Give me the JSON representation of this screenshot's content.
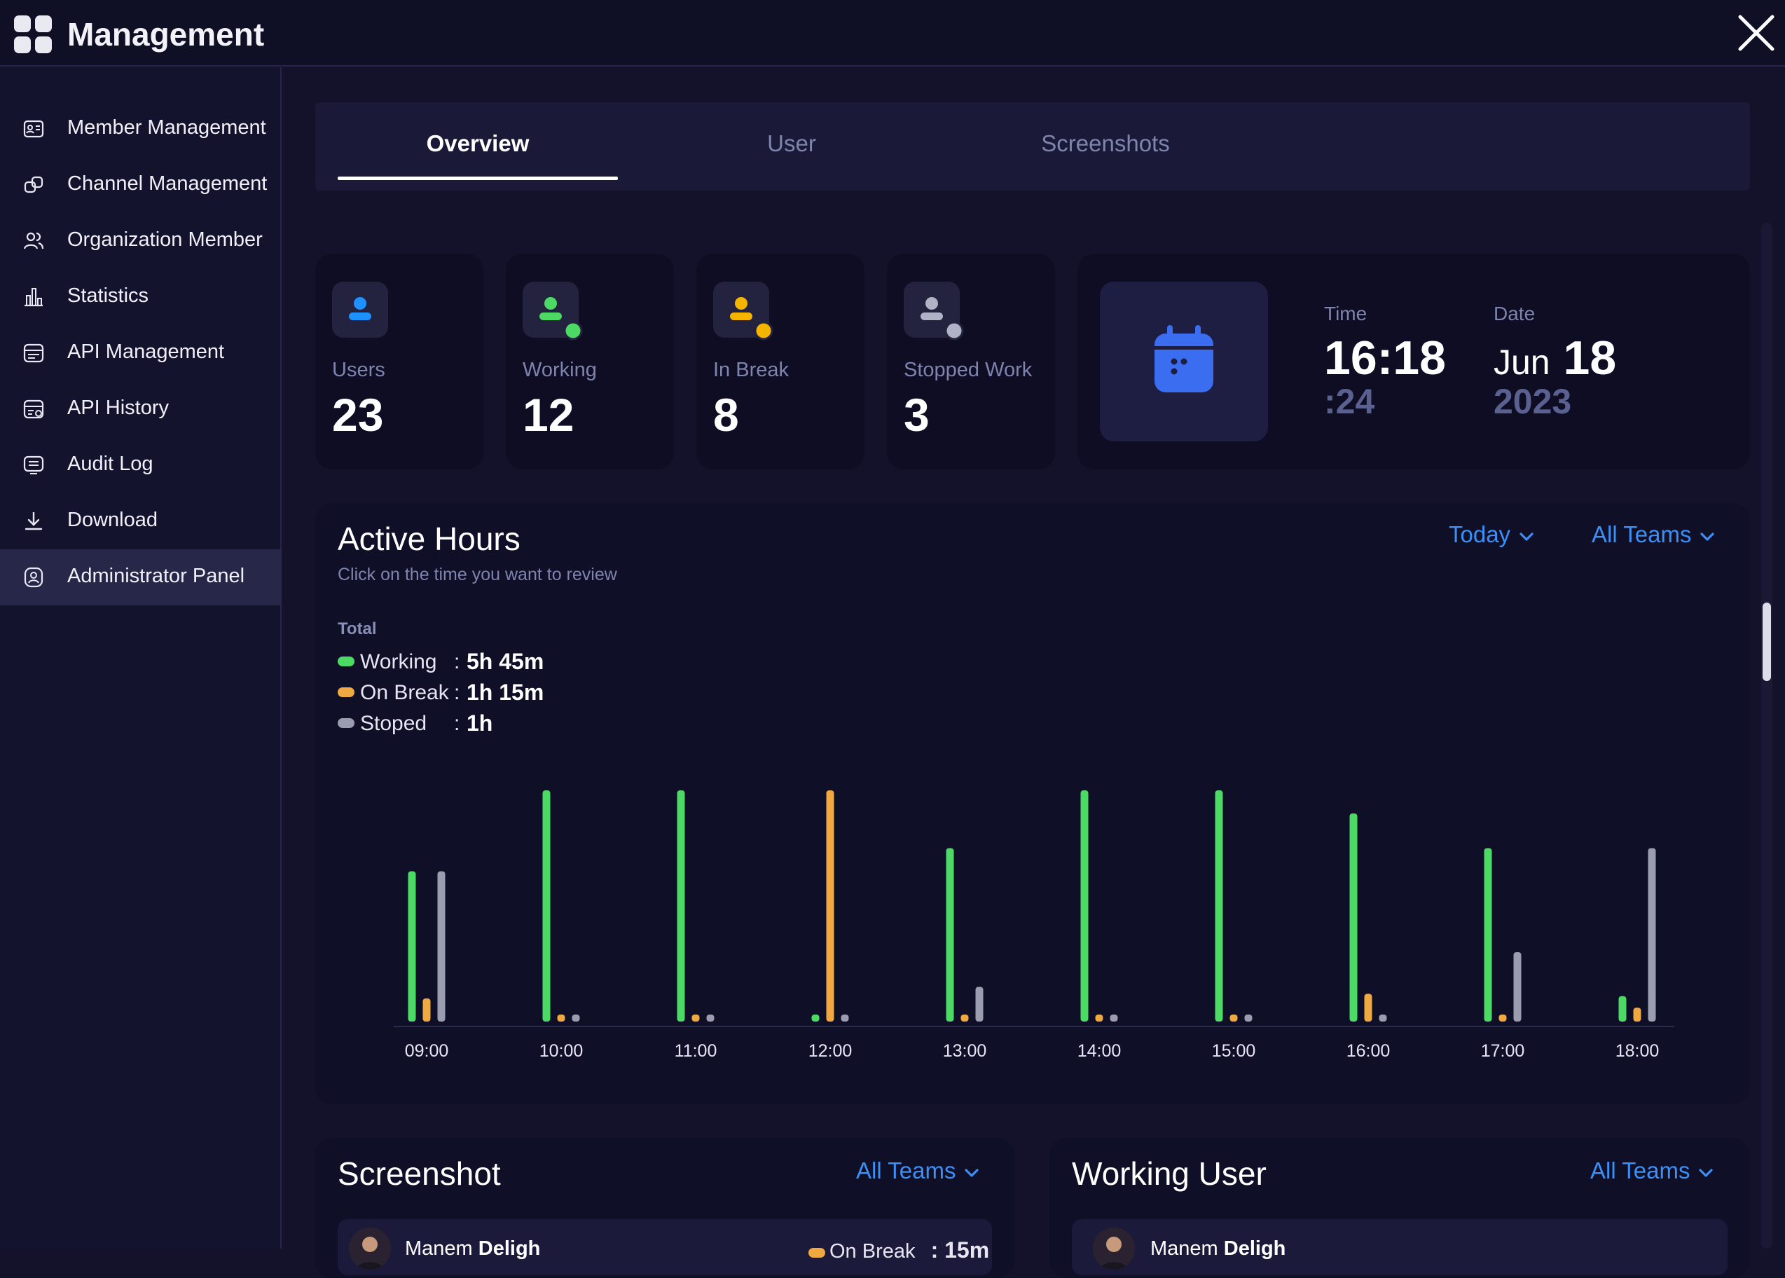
{
  "app": {
    "title": "Management"
  },
  "sidebar": {
    "items": [
      {
        "label": "Member Management",
        "icon": "id-card-icon"
      },
      {
        "label": "Channel Management",
        "icon": "link-icon"
      },
      {
        "label": "Organization Member",
        "icon": "users-icon"
      },
      {
        "label": "Statistics",
        "icon": "bar-chart-icon"
      },
      {
        "label": "API Management",
        "icon": "api-icon"
      },
      {
        "label": "API History",
        "icon": "api-history-icon"
      },
      {
        "label": "Audit Log",
        "icon": "log-icon"
      },
      {
        "label": "Download",
        "icon": "download-icon"
      },
      {
        "label": "Administrator Panel",
        "icon": "admin-icon",
        "active": true
      }
    ]
  },
  "tabs": [
    {
      "label": "Overview",
      "active": true
    },
    {
      "label": "User"
    },
    {
      "label": "Screenshots"
    }
  ],
  "stats": [
    {
      "label": "Users",
      "value": "23",
      "icon_color": "#1e90ff",
      "status_dot": null
    },
    {
      "label": "Working",
      "value": "12",
      "icon_color": "#4cd964",
      "status_dot": "#4cd964"
    },
    {
      "label": "In Break",
      "value": "8",
      "icon_color": "#f5b400",
      "status_dot": "#f5b400"
    },
    {
      "label": "Stopped Work",
      "value": "3",
      "icon_color": "#b0b3c6",
      "status_dot": "#b0b3c6"
    }
  ],
  "clock": {
    "time_label": "Time",
    "time": "16:18",
    "seconds": ":24",
    "date_label": "Date",
    "month": "Jun",
    "day": "18",
    "year": "2023"
  },
  "active_hours": {
    "title": "Active Hours",
    "subtitle": "Click on the time you want to review",
    "period_filter": "Today",
    "team_filter": "All Teams",
    "total_label": "Total",
    "totals": [
      {
        "name": "Working",
        "value": "5h 45m",
        "color": "#4cd964"
      },
      {
        "name": "On Break",
        "value": "1h 15m",
        "color": "#f0a940"
      },
      {
        "name": "Stoped",
        "value": "1h",
        "color": "#9a9db0"
      }
    ]
  },
  "chart_data": {
    "type": "bar",
    "categories": [
      "09:00",
      "10:00",
      "11:00",
      "12:00",
      "13:00",
      "14:00",
      "15:00",
      "16:00",
      "17:00",
      "18:00"
    ],
    "series": [
      {
        "key": "working",
        "color": "#4cd964",
        "values": [
          0.65,
          1.0,
          1.0,
          0.03,
          0.75,
          1.0,
          1.0,
          0.9,
          0.75,
          0.11
        ]
      },
      {
        "key": "break",
        "color": "#f0a940",
        "values": [
          0.1,
          0.03,
          0.03,
          1.0,
          0.03,
          0.03,
          0.03,
          0.12,
          0.03,
          0.06
        ]
      },
      {
        "key": "stopped",
        "color": "#9a9db0",
        "values": [
          0.65,
          0.03,
          0.03,
          0.03,
          0.15,
          0.03,
          0.03,
          0.03,
          0.3,
          0.75
        ]
      }
    ],
    "ylim": [
      0,
      1
    ]
  },
  "screenshot": {
    "title": "Screenshot",
    "team_filter": "All Teams",
    "row": {
      "name_first": "Manem",
      "name_last": "Deligh",
      "status": "On Break",
      "status_color": "#f0a940",
      "duration": ": 15m"
    }
  },
  "working_user": {
    "title": "Working User",
    "team_filter": "All Teams",
    "row": {
      "name_first": "Manem",
      "name_last": "Deligh"
    }
  }
}
